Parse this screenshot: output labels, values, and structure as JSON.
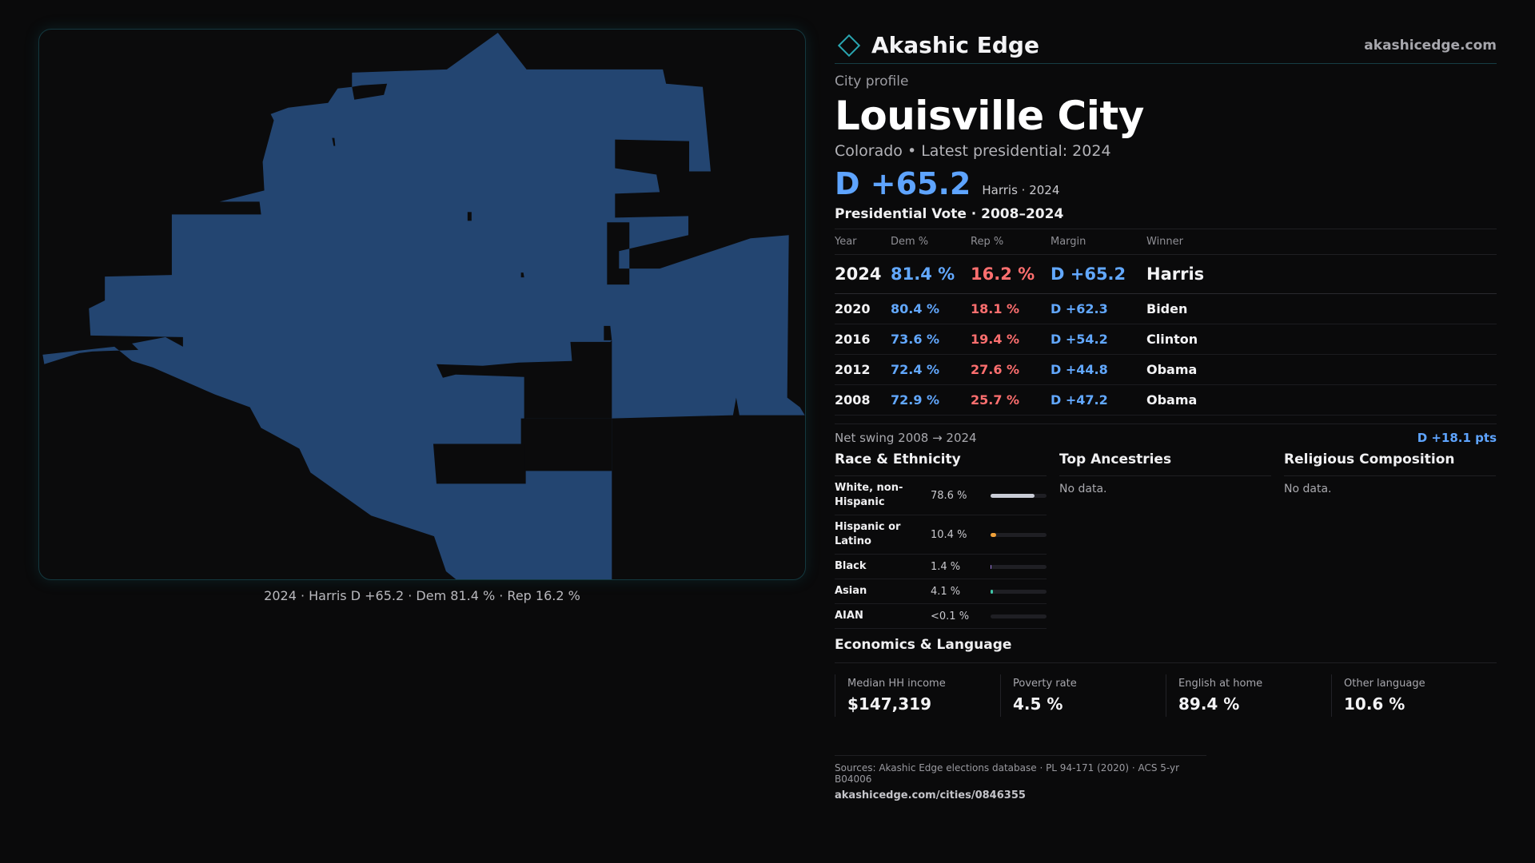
{
  "brand": {
    "name": "Akashic Edge",
    "url": "akashicedge.com",
    "accent": "#2aa6b1"
  },
  "header": {
    "eyebrow": "City profile",
    "title": "Louisville City",
    "subtitle": "Colorado • Latest presidential: 2024",
    "headline_margin": "D +65.2",
    "headline_note": "Harris · 2024"
  },
  "map": {
    "caption": "2024 · Harris D +65.2 · Dem 81.4 % · Rep 16.2 %",
    "fill_color": "#234571"
  },
  "vote": {
    "title": "Presidential Vote · 2008–2024",
    "columns": [
      "Year",
      "Dem %",
      "Rep %",
      "Margin",
      "Winner"
    ],
    "rows": [
      {
        "year": "2024",
        "dem": "81.4 %",
        "rep": "16.2 %",
        "margin": "D +65.2",
        "winner": "Harris"
      },
      {
        "year": "2020",
        "dem": "80.4 %",
        "rep": "18.1 %",
        "margin": "D +62.3",
        "winner": "Biden"
      },
      {
        "year": "2016",
        "dem": "73.6 %",
        "rep": "19.4 %",
        "margin": "D +54.2",
        "winner": "Clinton"
      },
      {
        "year": "2012",
        "dem": "72.4 %",
        "rep": "27.6 %",
        "margin": "D +44.8",
        "winner": "Obama"
      },
      {
        "year": "2008",
        "dem": "72.9 %",
        "rep": "25.7 %",
        "margin": "D +47.2",
        "winner": "Obama"
      }
    ],
    "swing_label": "Net swing 2008 → 2024",
    "swing_value": "D +18.1 pts"
  },
  "race": {
    "title": "Race & Ethnicity",
    "rows": [
      {
        "label": "White, non-Hispanic",
        "pct": "78.6 %",
        "share": 0.786,
        "color": "#c9ccd6"
      },
      {
        "label": "Hispanic or Latino",
        "pct": "10.4 %",
        "share": 0.104,
        "color": "#f0a13a"
      },
      {
        "label": "Black",
        "pct": "1.4 %",
        "share": 0.014,
        "color": "#9d7be0"
      },
      {
        "label": "Asian",
        "pct": "4.1 %",
        "share": 0.041,
        "color": "#3fc4a6"
      },
      {
        "label": "AIAN",
        "pct": "<0.1 %",
        "share": 0.0,
        "color": "#d46a6a"
      }
    ]
  },
  "ancestries": {
    "title": "Top Ancestries",
    "empty": "No data."
  },
  "religion": {
    "title": "Religious Composition",
    "empty": "No data."
  },
  "economics": {
    "title": "Economics & Language",
    "items": [
      {
        "label": "Median HH income",
        "value": "$147,319"
      },
      {
        "label": "Poverty rate",
        "value": "4.5 %"
      },
      {
        "label": "English at home",
        "value": "89.4 %"
      },
      {
        "label": "Other language",
        "value": "10.6 %"
      }
    ]
  },
  "sources": {
    "line": "Sources: Akashic Edge elections database · PL 94-171 (2020) · ACS 5-yr B04006",
    "url": "akashicedge.com/cities/0846355"
  }
}
